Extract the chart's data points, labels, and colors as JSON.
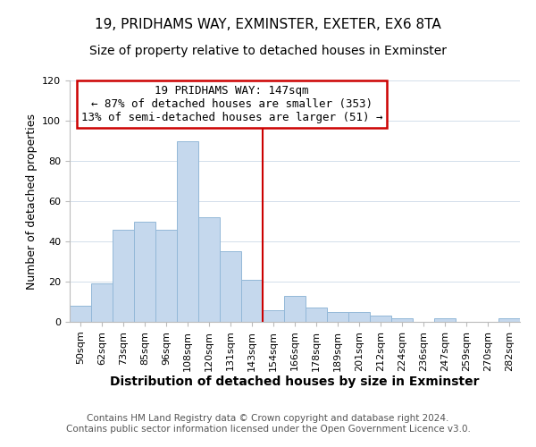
{
  "title": "19, PRIDHAMS WAY, EXMINSTER, EXETER, EX6 8TA",
  "subtitle": "Size of property relative to detached houses in Exminster",
  "xlabel": "Distribution of detached houses by size in Exminster",
  "ylabel": "Number of detached properties",
  "bar_labels": [
    "50sqm",
    "62sqm",
    "73sqm",
    "85sqm",
    "96sqm",
    "108sqm",
    "120sqm",
    "131sqm",
    "143sqm",
    "154sqm",
    "166sqm",
    "178sqm",
    "189sqm",
    "201sqm",
    "212sqm",
    "224sqm",
    "236sqm",
    "247sqm",
    "259sqm",
    "270sqm",
    "282sqm"
  ],
  "bar_values": [
    8,
    19,
    46,
    50,
    46,
    90,
    52,
    35,
    21,
    6,
    13,
    7,
    5,
    5,
    3,
    2,
    0,
    2,
    0,
    0,
    2
  ],
  "bar_color": "#c5d8ed",
  "bar_edge_color": "#93b8d8",
  "property_label": "19 PRIDHAMS WAY: 147sqm",
  "annotation_line1": "← 87% of detached houses are smaller (353)",
  "annotation_line2": "13% of semi-detached houses are larger (51) →",
  "vline_color": "#cc0000",
  "vline_x_index": 8.5,
  "annotation_box_color": "#ffffff",
  "annotation_box_edge_color": "#cc0000",
  "ylim": [
    0,
    120
  ],
  "footer1": "Contains HM Land Registry data © Crown copyright and database right 2024.",
  "footer2": "Contains public sector information licensed under the Open Government Licence v3.0.",
  "title_fontsize": 11,
  "subtitle_fontsize": 10,
  "xlabel_fontsize": 10,
  "ylabel_fontsize": 9,
  "tick_fontsize": 8,
  "annotation_fontsize": 9,
  "footer_fontsize": 7.5
}
